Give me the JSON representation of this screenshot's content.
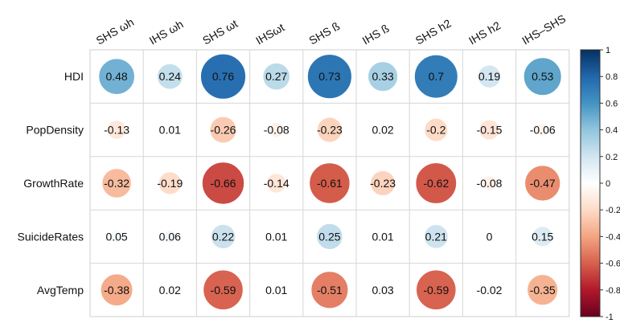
{
  "chart_data": {
    "type": "heatmap",
    "style": "corrplot-circle",
    "columns": [
      "SHS ωh",
      "IHS ωh",
      "SHS ωt",
      "IHSωt",
      "SHS ß",
      "IHS ß",
      "SHS h2",
      "IHS h2",
      "IHS–SHS"
    ],
    "rows": [
      "HDI",
      "PopDensity",
      "GrowthRate",
      "SuicideRates",
      "AvgTemp"
    ],
    "values": [
      [
        0.48,
        0.24,
        0.76,
        0.27,
        0.73,
        0.33,
        0.7,
        0.19,
        0.53
      ],
      [
        -0.13,
        0.01,
        -0.26,
        -0.08,
        -0.23,
        0.02,
        -0.2,
        -0.15,
        -0.06
      ],
      [
        -0.32,
        -0.19,
        -0.66,
        -0.14,
        -0.61,
        -0.23,
        -0.62,
        -0.08,
        -0.47
      ],
      [
        0.05,
        0.06,
        0.22,
        0.01,
        0.25,
        0.01,
        0.21,
        0,
        0.15
      ],
      [
        -0.38,
        0.02,
        -0.59,
        0.01,
        -0.51,
        0.03,
        -0.59,
        -0.02,
        -0.35
      ]
    ],
    "value_labels": [
      [
        "0.48",
        "0.24",
        "0.76",
        "0.27",
        "0.73",
        "0.33",
        "0.7",
        "0.19",
        "0.53"
      ],
      [
        "-0.13",
        "0.01",
        "-0.26",
        "-0.08",
        "-0.23",
        "0.02",
        "-0.2",
        "-0.15",
        "-0.06"
      ],
      [
        "-0.32",
        "-0.19",
        "-0.66",
        "-0.14",
        "-0.61",
        "-0.23",
        "-0.62",
        "-0.08",
        "-0.47"
      ],
      [
        "0.05",
        "0.06",
        "0.22",
        "0.01",
        "0.25",
        "0.01",
        "0.21",
        "0",
        "0.15"
      ],
      [
        "-0.38",
        "0.02",
        "-0.59",
        "0.01",
        "-0.51",
        "0.03",
        "-0.59",
        "-0.02",
        "-0.35"
      ]
    ],
    "color_scale": {
      "range": [
        -1,
        1
      ],
      "ticks": [
        "1",
        "0.8",
        "0.6",
        "0.4",
        "0.2",
        "0",
        "-0.2",
        "-0.4",
        "-0.6",
        "-0.8",
        "-1"
      ],
      "stops": [
        "#67001F",
        "#B2182B",
        "#D6604D",
        "#F4A582",
        "#FDDBC7",
        "#FFFFFF",
        "#D1E5F0",
        "#92C5DE",
        "#4393C3",
        "#2166AC",
        "#053061"
      ]
    },
    "legend": "right",
    "grid": true
  }
}
